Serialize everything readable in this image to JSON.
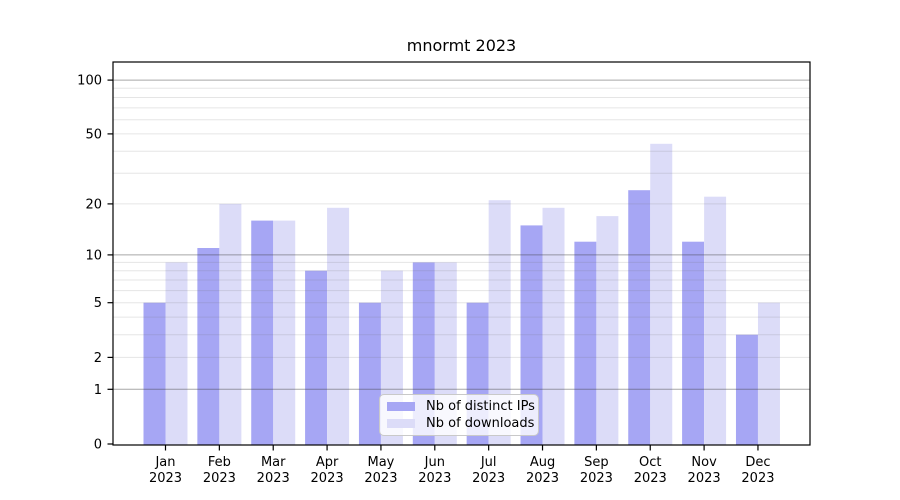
{
  "page": {
    "background": "#ffffff"
  },
  "chart_data": {
    "type": "bar",
    "title": "mnormt 2023",
    "categories": [
      "Jan",
      "Feb",
      "Mar",
      "Apr",
      "May",
      "Jun",
      "Jul",
      "Aug",
      "Sep",
      "Oct",
      "Nov",
      "Dec"
    ],
    "year": "2023",
    "series": [
      {
        "name": "Nb of distinct IPs",
        "color": "#a6a6f4",
        "values": [
          5,
          11,
          16,
          8,
          5,
          9,
          5,
          15,
          12,
          24,
          12,
          3
        ]
      },
      {
        "name": "Nb of downloads",
        "color": "#dcdcf8",
        "values": [
          9,
          20,
          16,
          19,
          8,
          9,
          21,
          19,
          17,
          44,
          22,
          5
        ]
      }
    ],
    "y_axis": {
      "scale": "log1p",
      "ticks": [
        0,
        1,
        2,
        5,
        10,
        20,
        50,
        100
      ],
      "major_ticks": [
        1,
        10,
        100
      ],
      "minor_lines": [
        3,
        4,
        6,
        7,
        8,
        9,
        30,
        40,
        60,
        70,
        80,
        90
      ],
      "ylim": [
        0,
        126
      ]
    },
    "xlabel": "",
    "ylabel": "",
    "grid": true,
    "legend": {
      "position": "bottom-center",
      "entries": [
        "Nb of distinct IPs",
        "Nb of downloads"
      ]
    },
    "colors": {
      "spine": "#000000",
      "major_grid": "#b3b3b3",
      "minor_grid": "#e8e8e8",
      "tick_label": "#000000"
    }
  }
}
